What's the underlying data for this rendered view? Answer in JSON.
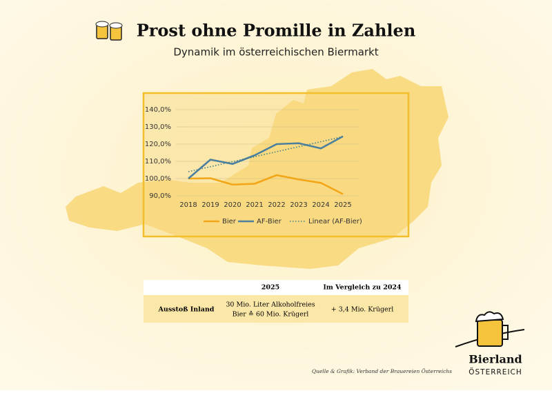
{
  "header": {
    "title": "Prost ohne Promille in Zahlen",
    "subtitle": "Dynamik im österreichischen Biermarkt"
  },
  "chart_data": {
    "type": "line",
    "categories": [
      "2018",
      "2019",
      "2020",
      "2021",
      "2022",
      "2023",
      "2024",
      "2025"
    ],
    "series": [
      {
        "name": "Bier",
        "color": "#f2a516",
        "values": [
          100,
          100.2,
          96.5,
          97,
          102,
          99.5,
          97.5,
          91
        ]
      },
      {
        "name": "AF-Bier",
        "color": "#4a7f9e",
        "values": [
          100,
          111,
          108.5,
          113.5,
          120,
          120.5,
          117.5,
          124.5
        ]
      },
      {
        "name": "Linear (AF-Bier)",
        "color": "#3e7f8a",
        "dotted": true,
        "values": [
          104,
          106.9,
          109.8,
          112.7,
          115.6,
          118.5,
          121.4,
          124.3
        ]
      }
    ],
    "ylim": [
      90,
      140
    ],
    "yticks": [
      {
        "value": 90,
        "label": "90,0%"
      },
      {
        "value": 100,
        "label": "100,0%"
      },
      {
        "value": 110,
        "label": "110,0%"
      },
      {
        "value": 120,
        "label": "120,0%"
      },
      {
        "value": 130,
        "label": "130,0%"
      },
      {
        "value": 140,
        "label": "140,0%"
      }
    ],
    "grid": true,
    "legend": "bottom"
  },
  "table": {
    "header": [
      "2025",
      "Im Vergleich zu 2024"
    ],
    "rows": [
      [
        "Ausstoß Inland",
        [
          "30 Mio. Liter Alkoholfreies",
          "Bier ≙ 60 Mio. Krügerl"
        ],
        "+ 3,4 Mio. Krügerl"
      ]
    ]
  },
  "source": "Quelle & Grafik: Verband der Brauereien Österreichs",
  "logo": {
    "name": "Bierland",
    "country": "ÖSTERREICH"
  }
}
